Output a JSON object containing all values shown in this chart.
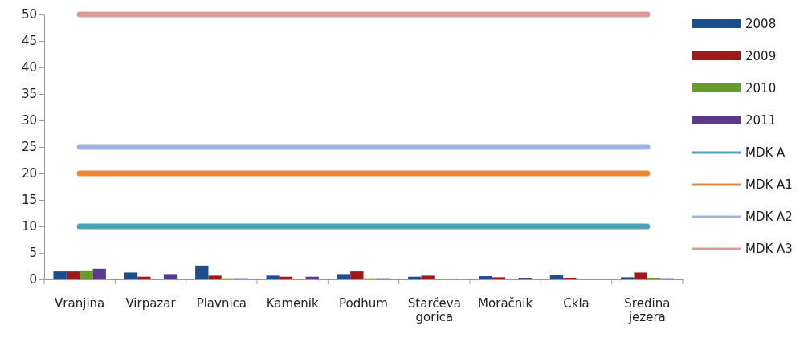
{
  "chart_data": {
    "type": "bar",
    "categories": [
      "Vranjina",
      "Virpazar",
      "Plavnica",
      "Kamenik",
      "Podhum",
      "Starčeva gorica",
      "Moračnik",
      "Ckla",
      "Sredina jezera"
    ],
    "series": [
      {
        "name": "2008",
        "color": "#1f4e8c",
        "values": [
          1.5,
          1.3,
          2.6,
          0.7,
          1.0,
          0.5,
          0.6,
          0.8,
          0.4
        ]
      },
      {
        "name": "2009",
        "color": "#9b1c1c",
        "values": [
          1.5,
          0.5,
          0.7,
          0.5,
          1.5,
          0.7,
          0.4,
          0.3,
          1.3
        ]
      },
      {
        "name": "2010",
        "color": "#6a9a2a",
        "values": [
          1.7,
          null,
          0.2,
          null,
          0.2,
          0.1,
          null,
          null,
          0.3
        ]
      },
      {
        "name": "2011",
        "color": "#5a3a8a",
        "values": [
          2.0,
          1.0,
          0.2,
          0.5,
          0.2,
          0.1,
          0.3,
          null,
          0.2
        ]
      },
      {
        "name": "MDK A",
        "type": "line",
        "color": "#4aa3b8",
        "values": [
          10,
          10,
          10,
          10,
          10,
          10,
          10,
          10,
          10
        ]
      },
      {
        "name": "MDK A1",
        "type": "line",
        "color": "#e8883a",
        "values": [
          20,
          20,
          20,
          20,
          20,
          20,
          20,
          20,
          20
        ]
      },
      {
        "name": "MDK A2",
        "type": "line",
        "color": "#9fb4dc",
        "values": [
          25,
          25,
          25,
          25,
          25,
          25,
          25,
          25,
          25
        ]
      },
      {
        "name": "MDK A3",
        "type": "line",
        "color": "#d99a9a",
        "values": [
          50,
          50,
          50,
          50,
          50,
          50,
          50,
          50,
          50
        ]
      }
    ],
    "ylim": [
      0,
      50
    ],
    "yticks": [
      0,
      5,
      10,
      15,
      20,
      25,
      30,
      35,
      40,
      45,
      50
    ],
    "grid": false,
    "legend": "right",
    "line_style": "solid",
    "marker": "none"
  }
}
